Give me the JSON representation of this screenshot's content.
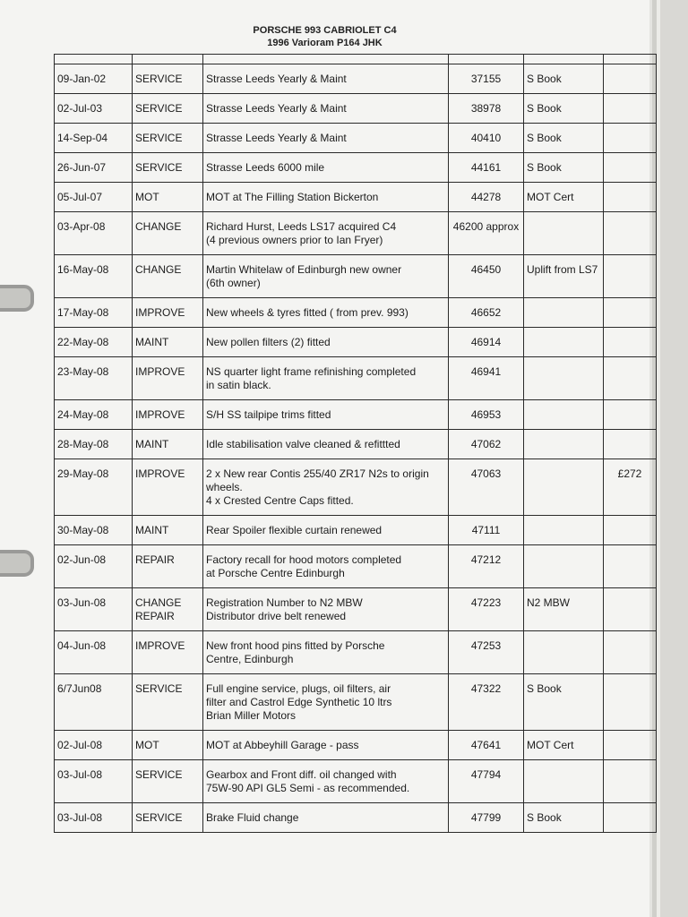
{
  "header": {
    "title": "PORSCHE 993 CABRIOLET C4",
    "subtitle": "1996 Varioram P164 JHK"
  },
  "table": {
    "entries": [
      {
        "date": "09-Jan-02",
        "type": [
          "SERVICE"
        ],
        "description": [
          "Strasse Leeds Yearly & Maint"
        ],
        "mileage": "37155",
        "note": "S Book"
      },
      {
        "date": "02-Jul-03",
        "type": [
          "SERVICE"
        ],
        "description": [
          "Strasse Leeds Yearly  & Maint"
        ],
        "mileage": "38978",
        "note": "S Book"
      },
      {
        "date": "14-Sep-04",
        "type": [
          "SERVICE"
        ],
        "description": [
          "Strasse Leeds Yearly & Maint"
        ],
        "mileage": "40410",
        "note": "S Book"
      },
      {
        "date": "26-Jun-07",
        "type": [
          "SERVICE"
        ],
        "description": [
          "Strasse Leeds 6000 mile"
        ],
        "mileage": "44161",
        "note": "S Book"
      },
      {
        "date": "05-Jul-07",
        "type": [
          "MOT"
        ],
        "description": [
          "MOT at The Filling Station Bickerton"
        ],
        "mileage": "44278",
        "note": "MOT Cert"
      },
      {
        "date": "03-Apr-08",
        "type": [
          "CHANGE"
        ],
        "description": [
          "Richard Hurst, Leeds LS17 acquired C4",
          "(4 previous owners prior to Ian Fryer)"
        ],
        "mileage": "46200 approx"
      },
      {
        "date": "16-May-08",
        "type": [
          "CHANGE"
        ],
        "description": [
          "Martin Whitelaw of Edinburgh new owner",
          "(6th owner)"
        ],
        "mileage": "46450",
        "note": "Uplift from LS7"
      },
      {
        "date": "17-May-08",
        "type": [
          "IMPROVE"
        ],
        "description": [
          "New wheels & tyres fitted ( from prev. 993)"
        ],
        "mileage": "46652"
      },
      {
        "date": "22-May-08",
        "type": [
          "MAINT"
        ],
        "description": [
          "New pollen filters (2) fitted"
        ],
        "mileage": "46914"
      },
      {
        "date": "23-May-08",
        "type": [
          "IMPROVE"
        ],
        "description": [
          "NS quarter light frame refinishing completed",
          "in satin black."
        ],
        "mileage": "46941"
      },
      {
        "date": "24-May-08",
        "type": [
          "IMPROVE"
        ],
        "description": [
          "S/H SS tailpipe trims fitted"
        ],
        "mileage": "46953"
      },
      {
        "date": "28-May-08",
        "type": [
          "MAINT"
        ],
        "description": [
          "Idle stabilisation valve cleaned & refittted"
        ],
        "mileage": "47062"
      },
      {
        "date": "29-May-08",
        "type": [
          "IMPROVE"
        ],
        "description": [
          "2 x New rear Contis 255/40 ZR17 N2s to origin",
          "wheels.",
          "4 x Crested Centre Caps fitted."
        ],
        "mileage": "47063",
        "cost": "£272"
      },
      {
        "date": "30-May-08",
        "type": [
          "MAINT"
        ],
        "description": [
          "Rear Spoiler flexible curtain renewed"
        ],
        "mileage": "47111"
      },
      {
        "date": "02-Jun-08",
        "type": [
          "REPAIR"
        ],
        "description": [
          "Factory recall for hood motors completed",
          "at Porsche Centre Edinburgh"
        ],
        "mileage": "47212"
      },
      {
        "date": "03-Jun-08",
        "type": [
          "CHANGE",
          "REPAIR"
        ],
        "description": [
          "Registration Number to N2 MBW",
          "Distributor drive belt renewed"
        ],
        "mileage": "47223",
        "note": "N2 MBW"
      },
      {
        "date": "04-Jun-08",
        "type": [
          "IMPROVE"
        ],
        "description": [
          "New front hood pins fitted by Porsche",
          "Centre, Edinburgh"
        ],
        "mileage": "47253"
      },
      {
        "date": "6/7Jun08",
        "type": [
          "SERVICE"
        ],
        "description": [
          "Full engine service, plugs, oil filters, air",
          "filter and Castrol Edge Synthetic 10 ltrs",
          "Brian Miller Motors"
        ],
        "mileage": "47322",
        "note": "S Book"
      },
      {
        "date": "02-Jul-08",
        "type": [
          "MOT"
        ],
        "description": [
          "MOT at Abbeyhill Garage - pass"
        ],
        "mileage": "47641",
        "note": "MOT Cert"
      },
      {
        "date": "03-Jul-08",
        "type": [
          "SERVICE"
        ],
        "description": [
          "Gearbox and Front diff. oil changed with",
          "75W-90 API GL5 Semi - as recommended."
        ],
        "mileage": "47794"
      },
      {
        "date": "03-Jul-08",
        "type": [
          "SERVICE"
        ],
        "description": [
          "Brake Fluid change"
        ],
        "mileage": "47799",
        "note": "S Book"
      }
    ]
  }
}
